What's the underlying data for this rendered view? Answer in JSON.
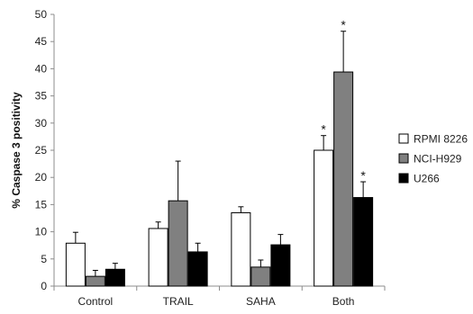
{
  "chart_data": {
    "type": "bar",
    "title": "",
    "xlabel": "",
    "ylabel": "% Caspase 3 positivity",
    "ylim": [
      0,
      50
    ],
    "yticks": [
      0,
      5,
      10,
      15,
      20,
      25,
      30,
      35,
      40,
      45,
      50
    ],
    "categories": [
      "Control",
      "TRAIL",
      "SAHA",
      "Both"
    ],
    "series": [
      {
        "name": "RPMI 8226",
        "color": "#ffffff",
        "values": [
          7.9,
          10.6,
          13.5,
          25.0
        ],
        "errors": [
          2.0,
          1.2,
          1.1,
          2.7
        ],
        "significance": [
          "",
          "",
          "",
          "*"
        ]
      },
      {
        "name": "NCI-H929",
        "color": "#808080",
        "values": [
          1.8,
          15.7,
          3.5,
          39.4
        ],
        "errors": [
          1.1,
          7.3,
          1.3,
          7.5
        ],
        "significance": [
          "",
          "",
          "",
          "*"
        ]
      },
      {
        "name": "U266",
        "color": "#000000",
        "values": [
          3.1,
          6.3,
          7.6,
          16.3
        ],
        "errors": [
          1.1,
          1.6,
          1.9,
          2.9
        ],
        "significance": [
          "",
          "",
          "",
          "*"
        ]
      }
    ],
    "grid": false,
    "legend_position": "right"
  }
}
